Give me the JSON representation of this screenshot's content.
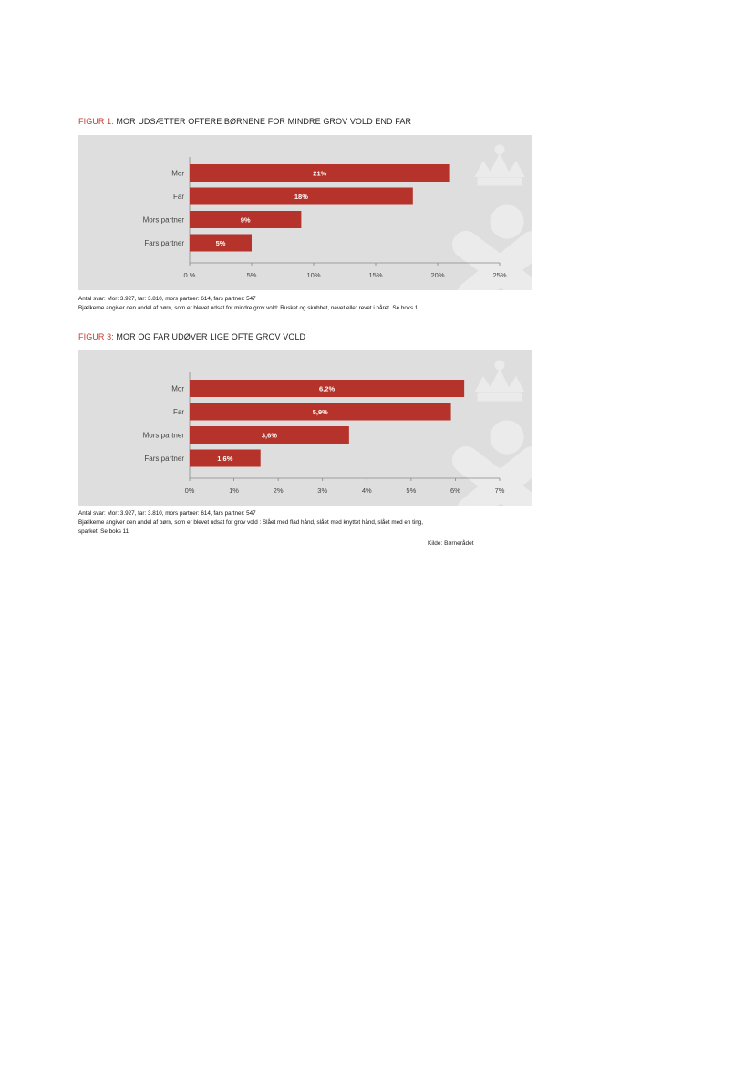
{
  "figures": [
    {
      "prefix": "FIGUR 1:",
      "title": "MOR UDSÆTTER OFTERE BØRNENE FOR MINDRE GROV VOLD END FAR",
      "notes": [
        "Antal svar:  Mor: 3.927, far: 3.810, mors partner: 614, fars partner: 547",
        "Bjælkerne angiver den andel af børn,  som er blevet udsat for mindre grov vold: Rusket og skubbet, nevet eller revet i håret.  Se boks 1."
      ]
    },
    {
      "prefix": "FIGUR 3:",
      "title": "MOR OG FAR UDØVER LIGE OFTE GROV VOLD",
      "notes": [
        "Antal svar:  Mor: 3.927, far: 3.810, mors partner: 614, fars partner: 547",
        "Bjælkerne angiver den andel af børn,  som er blevet udsat for grov vold : Slået  med flad hånd,  slået med  knyttet hånd,  slået  med en ting,",
        "sparket. Se boks 11"
      ]
    }
  ],
  "source": "Kilde: Børnerådet",
  "colors": {
    "bar": "#b5332a",
    "panel": "#dedede",
    "axis": "#888888",
    "title_accent": "#c0392b",
    "watermark": "#ebebeb"
  },
  "chart_data": [
    {
      "type": "bar",
      "orientation": "horizontal",
      "categories": [
        "Mor",
        "Far",
        "Mors partner",
        "Fars partner"
      ],
      "values": [
        21,
        18,
        9,
        5
      ],
      "value_labels": [
        "21%",
        "18%",
        "9%",
        "5%"
      ],
      "xlim": [
        0,
        25
      ],
      "xticks": [
        "0 %",
        "5%",
        "10%",
        "15%",
        "20%",
        "25%"
      ],
      "grid": false,
      "legend": "none"
    },
    {
      "type": "bar",
      "orientation": "horizontal",
      "categories": [
        "Mor",
        "Far",
        "Mors partner",
        "Fars partner"
      ],
      "values": [
        6.2,
        5.9,
        3.6,
        1.6
      ],
      "value_labels": [
        "6,2%",
        "5,9%",
        "3,6%",
        "1,6%"
      ],
      "xlim": [
        0,
        7
      ],
      "xticks": [
        "0%",
        "1%",
        "2%",
        "3%",
        "4%",
        "5%",
        "6%",
        "7%"
      ],
      "grid": false,
      "legend": "none"
    }
  ]
}
